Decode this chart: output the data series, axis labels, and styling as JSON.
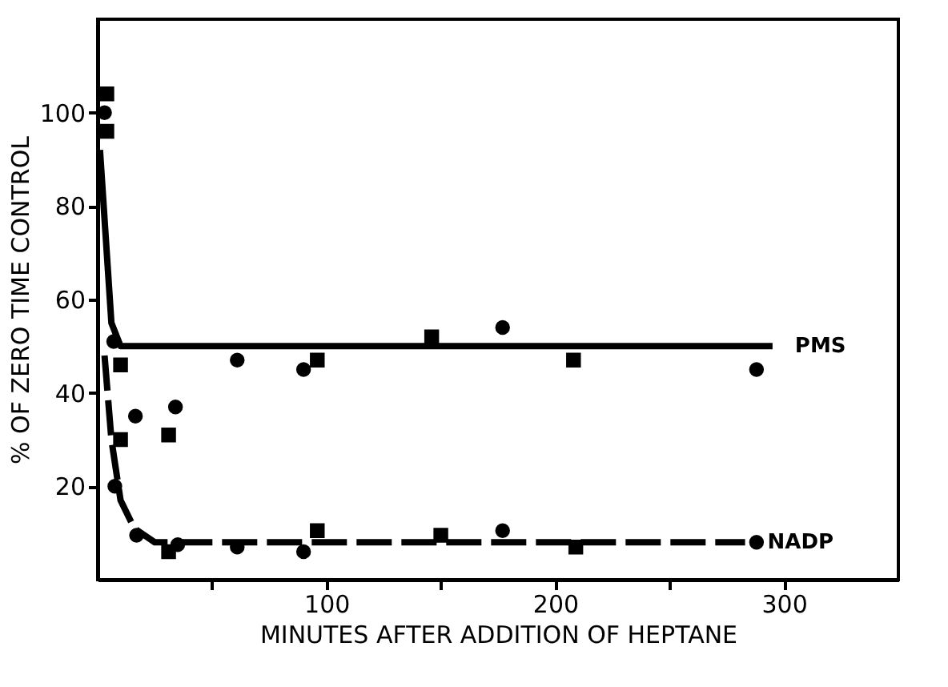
{
  "chart_data": {
    "type": "scatter",
    "xlabel": "MINUTES AFTER ADDITION OF HEPTANE",
    "ylabel": "% OF ZERO TIME CONTROL",
    "xlim": [
      0,
      350
    ],
    "ylim": [
      0,
      120
    ],
    "xticks": [
      {
        "value": 50,
        "label": null
      },
      100,
      {
        "value": 150,
        "label": null
      },
      200,
      {
        "value": 250,
        "label": null
      },
      300
    ],
    "yticks": [
      20,
      40,
      60,
      80,
      100
    ],
    "grid": false,
    "series": [
      {
        "marker": "circle",
        "color": "#000000",
        "x": [
          3,
          7,
          16.5,
          34,
          61,
          90,
          177,
          288
        ],
        "values": [
          100,
          51,
          35,
          37,
          47,
          45,
          54,
          45
        ]
      },
      {
        "marker": "square",
        "color": "#000000",
        "x": [
          4,
          10,
          31,
          96,
          146,
          208
        ],
        "values": [
          96,
          46,
          31,
          47,
          52,
          47
        ]
      },
      {
        "marker": "circle",
        "color": "#000000",
        "x": [
          7.5,
          17,
          35,
          61,
          90,
          177,
          288
        ],
        "values": [
          20,
          9.5,
          7.5,
          7,
          6,
          10.5,
          8
        ]
      },
      {
        "marker": "square",
        "color": "#000000",
        "x": [
          4,
          10,
          31,
          96,
          150,
          209
        ],
        "values": [
          104,
          30,
          6,
          10.5,
          9.5,
          7
        ]
      },
      {
        "type": "line",
        "name": "PMS",
        "line_style": "solid",
        "color": "#000000",
        "x": [
          1,
          6,
          10,
          295
        ],
        "values": [
          92,
          55,
          50,
          50
        ]
      },
      {
        "type": "line",
        "name": "NADP",
        "line_style": "dashed",
        "color": "#000000",
        "x": [
          3,
          6,
          10,
          16,
          25,
          283
        ],
        "values": [
          48,
          30,
          17,
          11,
          8,
          8
        ]
      }
    ]
  }
}
